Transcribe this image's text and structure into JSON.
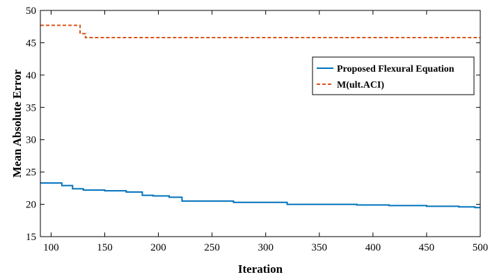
{
  "chart_data": {
    "type": "line",
    "title": "",
    "xlabel": "Iteration",
    "ylabel": "Mean Absolute Error",
    "xlim": [
      90,
      500
    ],
    "ylim": [
      15,
      50
    ],
    "xticks": [
      100,
      150,
      200,
      250,
      300,
      350,
      400,
      450,
      500
    ],
    "yticks": [
      15,
      20,
      25,
      30,
      35,
      40,
      45,
      50
    ],
    "grid": false,
    "legend_position": "top-right",
    "series": [
      {
        "name": "Proposed Flexural Equation",
        "color": "#0072BD",
        "style": "solid",
        "step": true,
        "x": [
          90,
          110,
          120,
          130,
          150,
          170,
          185,
          195,
          210,
          222,
          270,
          320,
          385,
          415,
          450,
          480,
          495,
          500
        ],
        "y": [
          23.3,
          22.9,
          22.4,
          22.2,
          22.1,
          21.9,
          21.4,
          21.3,
          21.1,
          20.5,
          20.3,
          20.0,
          19.9,
          19.8,
          19.7,
          19.6,
          19.5,
          19.5
        ]
      },
      {
        "name": "M(ult.ACI)",
        "color": "#D95319",
        "style": "dashed",
        "step": true,
        "x": [
          90,
          127,
          132,
          500
        ],
        "y": [
          47.7,
          46.4,
          45.8,
          45.8
        ]
      }
    ]
  }
}
